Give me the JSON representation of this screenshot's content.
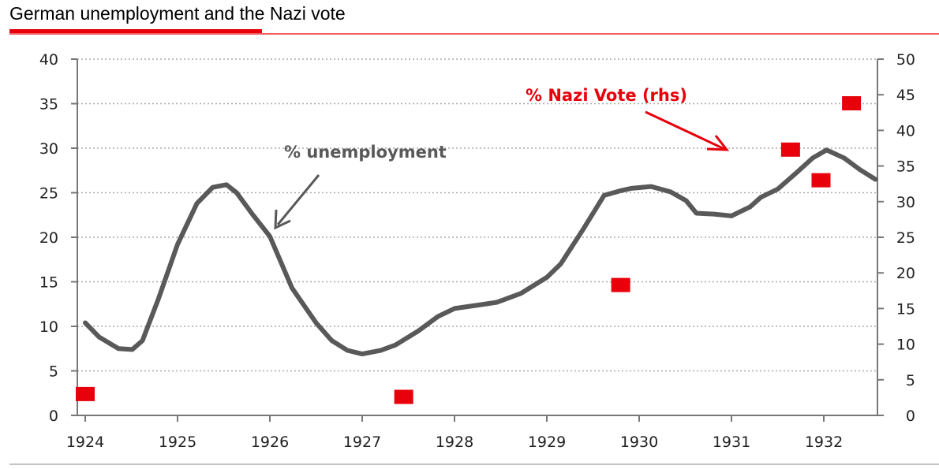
{
  "title": "German unemployment and the Nazi vote",
  "colors": {
    "accent": "#e8000b",
    "line": "#595959",
    "grid": "#aaaaaa"
  },
  "chart_data": {
    "type": "line",
    "title": "German unemployment and the Nazi vote",
    "xlim": [
      1924,
      1932.6
    ],
    "x_ticks": [
      "1924",
      "1925",
      "1926",
      "1927",
      "1928",
      "1929",
      "1930",
      "1931",
      "1932"
    ],
    "y_left": {
      "lim": [
        0,
        40
      ],
      "ticks": [
        "0",
        "5",
        "10",
        "15",
        "20",
        "25",
        "30",
        "35",
        "40"
      ]
    },
    "y_right": {
      "lim": [
        0,
        50
      ],
      "ticks": [
        "0",
        "5",
        "10",
        "15",
        "20",
        "25",
        "30",
        "35",
        "40",
        "45",
        "50"
      ]
    },
    "grid": "horizontal dotted",
    "series": [
      {
        "name": "% unemployment",
        "axis": "left",
        "type": "line",
        "x": [
          1924.0,
          1924.15,
          1924.36,
          1924.51,
          1924.62,
          1924.79,
          1925.0,
          1925.21,
          1925.38,
          1925.53,
          1925.64,
          1925.81,
          1926.0,
          1926.24,
          1926.5,
          1926.67,
          1926.84,
          1927.0,
          1927.2,
          1927.36,
          1927.61,
          1927.82,
          1928.0,
          1928.2,
          1928.46,
          1928.72,
          1929.0,
          1929.15,
          1929.4,
          1929.62,
          1929.79,
          1929.92,
          1930.13,
          1930.34,
          1930.51,
          1930.62,
          1930.81,
          1931.0,
          1931.2,
          1931.32,
          1931.5,
          1931.71,
          1931.88,
          1932.03,
          1932.22,
          1932.39,
          1932.56
        ],
        "y": [
          10.4,
          8.8,
          7.5,
          7.4,
          8.4,
          13,
          19.2,
          23.8,
          25.6,
          25.9,
          25,
          22.6,
          20.1,
          14.3,
          10.4,
          8.4,
          7.3,
          6.9,
          7.3,
          7.9,
          9.5,
          11.1,
          12,
          12.3,
          12.7,
          13.7,
          15.5,
          17,
          21,
          24.7,
          25.2,
          25.5,
          25.7,
          25.1,
          24.1,
          22.7,
          22.6,
          22.4,
          23.4,
          24.5,
          25.4,
          27.3,
          28.9,
          29.8,
          28.9,
          27.6,
          26.5
        ]
      },
      {
        "name": "% Nazi Vote (rhs)",
        "axis": "right",
        "type": "scatter",
        "x": [
          1924.0,
          1927.45,
          1929.8,
          1931.64,
          1931.97,
          1932.3
        ],
        "y": [
          3.0,
          2.6,
          18.3,
          37.3,
          33.0,
          43.8
        ]
      }
    ],
    "annotations": [
      {
        "text": "% unemployment",
        "color": "#595959"
      },
      {
        "text": "% Nazi Vote (rhs)",
        "color": "#e8000b"
      }
    ]
  }
}
